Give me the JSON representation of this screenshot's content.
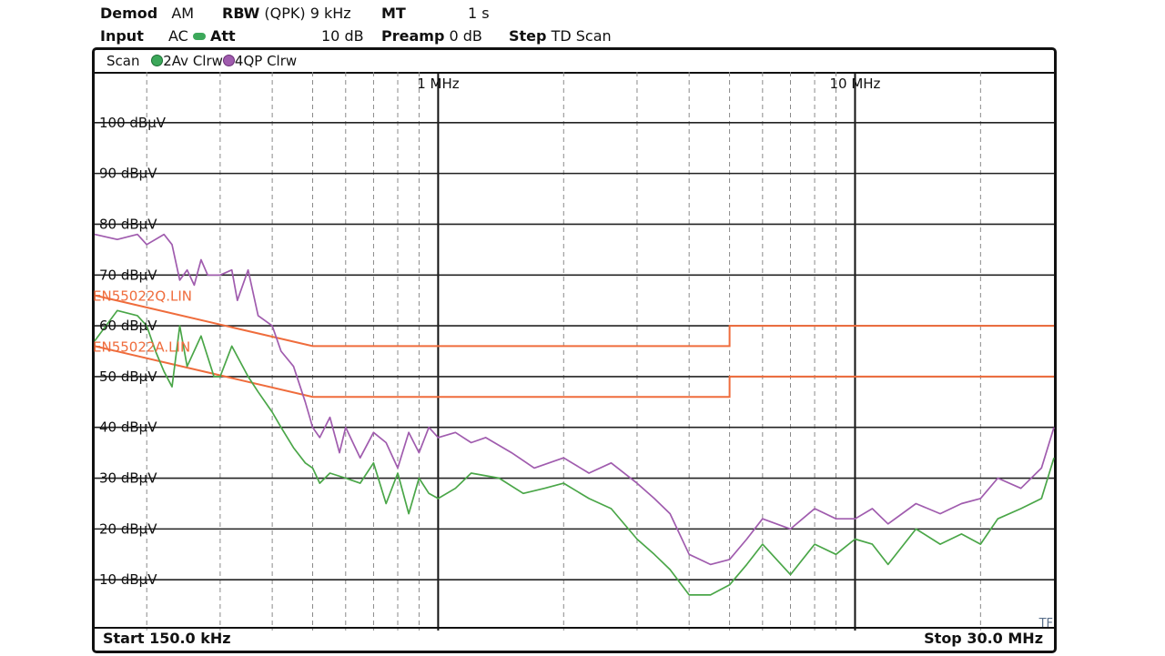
{
  "header": {
    "demod_label": "Demod",
    "demod_value": "AM",
    "rbw_label": "RBW",
    "rbw_detector": "(QPK)",
    "rbw_value": "9 kHz",
    "mt_label": "MT",
    "mt_value": "1 s",
    "input_label": "Input",
    "input_value": "AC",
    "att_label": "Att",
    "att_value": "10 dB",
    "preamp_label": "Preamp",
    "preamp_value": "0 dB",
    "step_label": "Step",
    "step_value": "TD Scan"
  },
  "trace_bar": {
    "mode": "Scan",
    "trace2": "2Av Clrw",
    "trace4": "4QP Clrw"
  },
  "footer": {
    "start": "Start 150.0 kHz",
    "stop": "Stop 30.0 MHz",
    "corner": "TF"
  },
  "colors": {
    "average_trace": "#4aa648",
    "quasipeak_trace": "#a05cae",
    "limit_lines": "#ef6c3c",
    "indicator": "#3ca85a"
  },
  "chart_data": {
    "type": "line",
    "x_scale": "log",
    "x_unit": "MHz",
    "xlim": [
      0.15,
      30
    ],
    "y_unit": "dBµV",
    "ylim": [
      0,
      110
    ],
    "y_ticks": [
      10,
      20,
      30,
      40,
      50,
      60,
      70,
      80,
      90,
      100
    ],
    "y_tick_labels": [
      "10 dBµV",
      "20 dBµV",
      "30 dBµV",
      "40 dBµV",
      "50 dBµV",
      "60 dBµV",
      "70 dBµV",
      "80 dBµV",
      "90 dBµV",
      "100 dBµV"
    ],
    "x_markers": [
      {
        "x": 1,
        "label": "1 MHz"
      },
      {
        "x": 10,
        "label": "10 MHz"
      }
    ],
    "grid": true,
    "limit_lines": [
      {
        "name": "EN55022Q.LIN",
        "points": [
          [
            0.15,
            66
          ],
          [
            0.5,
            56
          ],
          [
            5,
            56
          ],
          [
            5,
            60
          ],
          [
            30,
            60
          ]
        ]
      },
      {
        "name": "EN55022A.LIN",
        "points": [
          [
            0.15,
            56
          ],
          [
            0.5,
            46
          ],
          [
            5,
            46
          ],
          [
            5,
            50
          ],
          [
            30,
            50
          ]
        ]
      }
    ],
    "series": [
      {
        "name": "4QP Clrw",
        "x": [
          0.15,
          0.17,
          0.19,
          0.2,
          0.22,
          0.23,
          0.24,
          0.25,
          0.26,
          0.27,
          0.28,
          0.3,
          0.32,
          0.33,
          0.35,
          0.37,
          0.4,
          0.42,
          0.45,
          0.48,
          0.5,
          0.52,
          0.55,
          0.58,
          0.6,
          0.65,
          0.7,
          0.75,
          0.8,
          0.85,
          0.9,
          0.95,
          1.0,
          1.1,
          1.2,
          1.3,
          1.5,
          1.7,
          2.0,
          2.3,
          2.6,
          3.0,
          3.3,
          3.6,
          4.0,
          4.5,
          5.0,
          5.5,
          6.0,
          7.0,
          8.0,
          9.0,
          10.0,
          11.0,
          12.0,
          14.0,
          16.0,
          18.0,
          20.0,
          22.0,
          25.0,
          28.0,
          30.0
        ],
        "y": [
          78,
          77,
          78,
          76,
          78,
          76,
          69,
          71,
          68,
          73,
          70,
          70,
          71,
          65,
          71,
          62,
          60,
          55,
          52,
          45,
          40,
          38,
          42,
          35,
          40,
          34,
          39,
          37,
          32,
          39,
          35,
          40,
          38,
          39,
          37,
          38,
          35,
          32,
          34,
          31,
          33,
          29,
          26,
          23,
          15,
          13,
          14,
          18,
          22,
          20,
          24,
          22,
          22,
          24,
          21,
          25,
          23,
          25,
          26,
          30,
          28,
          32,
          40
        ]
      },
      {
        "name": "2Av Clrw",
        "x": [
          0.15,
          0.17,
          0.19,
          0.2,
          0.21,
          0.22,
          0.23,
          0.24,
          0.25,
          0.27,
          0.29,
          0.3,
          0.32,
          0.35,
          0.37,
          0.4,
          0.42,
          0.45,
          0.48,
          0.5,
          0.52,
          0.55,
          0.6,
          0.65,
          0.7,
          0.75,
          0.8,
          0.85,
          0.9,
          0.95,
          1.0,
          1.1,
          1.2,
          1.4,
          1.6,
          1.8,
          2.0,
          2.3,
          2.6,
          3.0,
          3.3,
          3.6,
          4.0,
          4.5,
          5.0,
          5.5,
          6.0,
          7.0,
          8.0,
          9.0,
          10.0,
          11.0,
          12.0,
          14.0,
          16.0,
          18.0,
          20.0,
          22.0,
          25.0,
          28.0,
          30.0
        ],
        "y": [
          57,
          63,
          62,
          60,
          55,
          51,
          48,
          60,
          52,
          58,
          50,
          50,
          56,
          50,
          47,
          43,
          40,
          36,
          33,
          32,
          29,
          31,
          30,
          29,
          33,
          25,
          31,
          23,
          30,
          27,
          26,
          28,
          31,
          30,
          27,
          28,
          29,
          26,
          24,
          18,
          15,
          12,
          7,
          7,
          9,
          13,
          17,
          11,
          17,
          15,
          18,
          17,
          13,
          20,
          17,
          19,
          17,
          22,
          24,
          26,
          34
        ]
      }
    ]
  }
}
